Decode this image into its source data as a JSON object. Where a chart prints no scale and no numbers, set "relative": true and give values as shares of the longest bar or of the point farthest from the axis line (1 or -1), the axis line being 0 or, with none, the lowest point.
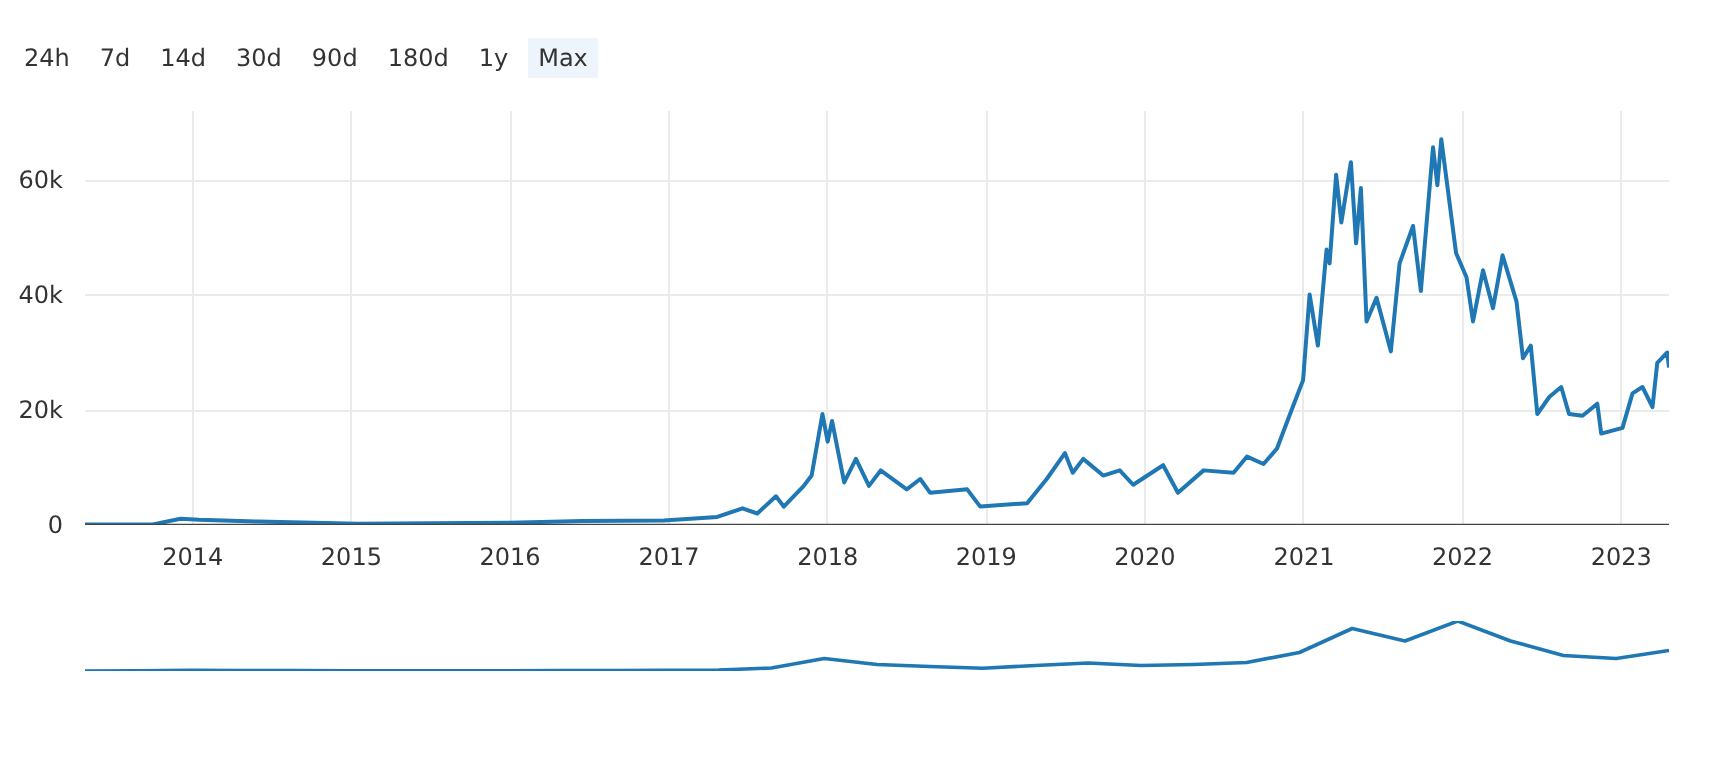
{
  "chart_data": [
    {
      "type": "line",
      "annotations": [
        "24h",
        "7d",
        "14d",
        "30d",
        "90d",
        "180d",
        "1y",
        "Max"
      ],
      "x": [
        "2013-04-28",
        "2013-10-01",
        "2013-12-04",
        "2014-01-15",
        "2014-06-01",
        "2015-01-15",
        "2016-01-01",
        "2016-06-15",
        "2016-12-20",
        "2017-04-22",
        "2017-06-19",
        "2017-07-23",
        "2017-09-04",
        "2017-09-22",
        "2017-11-07",
        "2017-11-25",
        "2017-12-20",
        "2018-01-01",
        "2018-01-11",
        "2018-02-08",
        "2018-03-07",
        "2018-04-06",
        "2018-05-03",
        "2018-07-02",
        "2018-08-02",
        "2018-08-25",
        "2018-11-18",
        "2018-12-18",
        "2019-04-05",
        "2019-05-20",
        "2019-07-01",
        "2019-07-19",
        "2019-08-12",
        "2019-09-27",
        "2019-11-04",
        "2019-12-05",
        "2020-02-12",
        "2020-03-17",
        "2020-05-15",
        "2020-07-23",
        "2020-08-23",
        "2020-09-30",
        "2020-10-31",
        "2020-11-30",
        "2020-12-30",
        "2021-01-14",
        "2021-02-02",
        "2021-02-22",
        "2021-03-01",
        "2021-03-16",
        "2021-03-28",
        "2021-04-19",
        "2021-05-01",
        "2021-05-12",
        "2021-05-25",
        "2021-06-17",
        "2021-07-20",
        "2021-08-09",
        "2021-09-09",
        "2021-09-27",
        "2021-10-25",
        "2021-11-04",
        "2021-11-13",
        "2021-12-17",
        "2022-01-10",
        "2022-01-25",
        "2022-02-17",
        "2022-03-12",
        "2022-04-03",
        "2022-05-05",
        "2022-05-20",
        "2022-06-07",
        "2022-06-22",
        "2022-07-20",
        "2022-08-16",
        "2022-09-03",
        "2022-10-04",
        "2022-11-07",
        "2022-11-16",
        "2023-01-04",
        "2023-01-27",
        "2023-02-19",
        "2023-03-14",
        "2023-03-25",
        "2023-04-17",
        "2023-04-21"
      ],
      "series": [
        {
          "color": "#1f77b4",
          "values": [
            100,
            100,
            1100,
            900,
            600,
            200,
            400,
            700,
            800,
            1400,
            2900,
            2000,
            5000,
            3200,
            6800,
            8600,
            19300,
            14500,
            18100,
            7400,
            11500,
            6800,
            9500,
            6200,
            8000,
            5600,
            6200,
            3200,
            3800,
            8000,
            12500,
            9100,
            11500,
            8600,
            9500,
            7000,
            10400,
            5600,
            9500,
            9100,
            11900,
            10600,
            13300,
            19300,
            25200,
            40100,
            31200,
            47900,
            45500,
            60900,
            52600,
            63100,
            49000,
            58600,
            35400,
            39500,
            30200,
            45500,
            52000,
            40700,
            65700,
            59100,
            67100,
            47300,
            43100,
            35400,
            44300,
            37700,
            46900,
            38900,
            29000,
            31200,
            19300,
            22300,
            24000,
            19300,
            19000,
            21100,
            15900,
            16900,
            22900,
            24000,
            20500,
            28200,
            30000,
            27400
          ]
        }
      ],
      "xlim": [
        "2013-04-28",
        "2023-04-21"
      ],
      "xticks": [
        {
          "value": "2014-01-01",
          "label": "2014"
        },
        {
          "value": "2015-01-01",
          "label": "2015"
        },
        {
          "value": "2016-01-01",
          "label": "2016"
        },
        {
          "value": "2017-01-01",
          "label": "2017"
        },
        {
          "value": "2018-01-01",
          "label": "2018"
        },
        {
          "value": "2019-01-01",
          "label": "2019"
        },
        {
          "value": "2020-01-01",
          "label": "2020"
        },
        {
          "value": "2021-01-01",
          "label": "2021"
        },
        {
          "value": "2022-01-01",
          "label": "2022"
        },
        {
          "value": "2023-01-01",
          "label": "2023"
        }
      ],
      "ylim": [
        0,
        72000
      ],
      "yticks": [
        0,
        {
          "value": 20000,
          "label": "20k"
        },
        {
          "value": 40000,
          "label": "40k"
        },
        {
          "value": 60000,
          "label": "60k"
        }
      ],
      "grid": true,
      "line_style": "solid"
    },
    {
      "type": "line",
      "relative": true,
      "tick_labels": false,
      "categories": [
        null,
        null,
        null,
        null,
        null,
        null,
        null,
        null,
        null,
        null,
        null,
        null,
        null,
        null,
        null,
        null,
        null,
        null,
        null,
        null,
        null,
        null,
        null,
        null,
        null,
        null,
        null,
        null,
        null,
        null,
        null
      ],
      "series": [
        {
          "color": "#1f77b4",
          "values": [
            0,
            0.002,
            0.015,
            0.011,
            0.008,
            0.004,
            0.003,
            0.004,
            0.006,
            0.007,
            0.01,
            0.012,
            0.021,
            0.06,
            0.25,
            0.13,
            0.09,
            0.055,
            0.11,
            0.16,
            0.11,
            0.13,
            0.17,
            0.37,
            0.85,
            0.6,
            1,
            0.6,
            0.31,
            0.25,
            0.41
          ]
        }
      ],
      "line_style": "solid"
    }
  ]
}
